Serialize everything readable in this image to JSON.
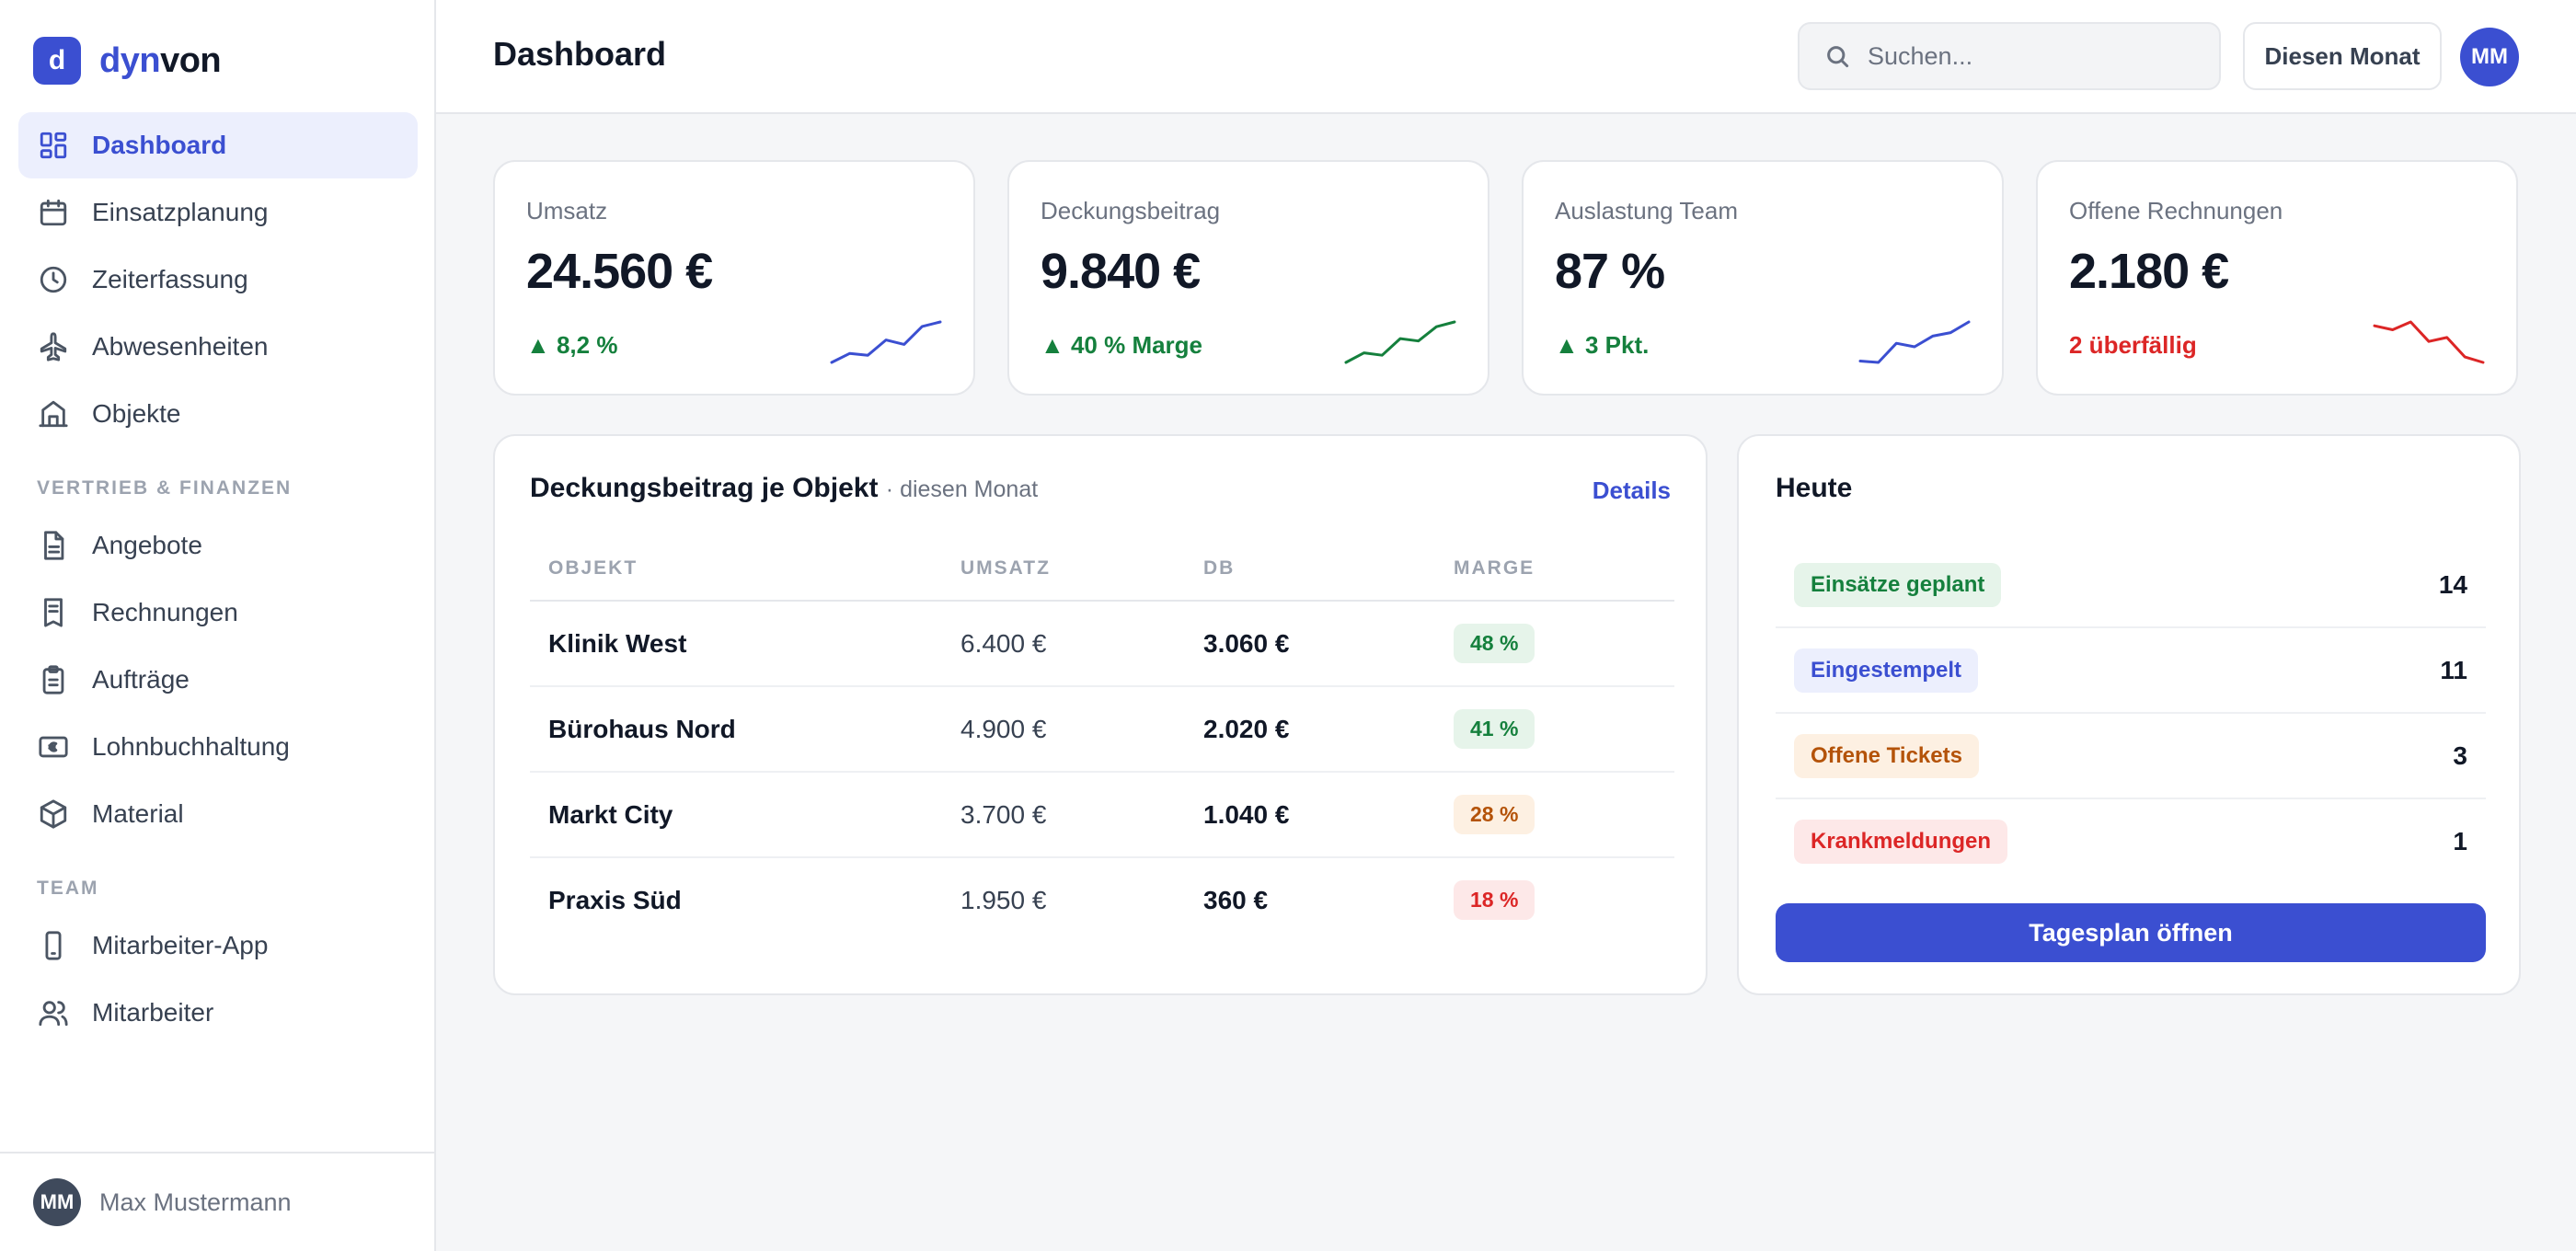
{
  "brand": {
    "mark": "d",
    "name_part1": "dyn",
    "name_part2": "von",
    "accent": "#3b4fd1"
  },
  "sidebar": {
    "main_items": [
      {
        "label": "Dashboard",
        "icon": "dashboard-grid-icon",
        "active": true
      },
      {
        "label": "Einsatzplanung",
        "icon": "calendar-icon"
      },
      {
        "label": "Zeiterfassung",
        "icon": "clock-icon"
      },
      {
        "label": "Abwesenheiten",
        "icon": "airplane-icon"
      },
      {
        "label": "Objekte",
        "icon": "building-icon"
      }
    ],
    "section_finance": "VERTRIEB & FINANZEN",
    "finance_items": [
      {
        "label": "Angebote",
        "icon": "document-icon"
      },
      {
        "label": "Rechnungen",
        "icon": "receipt-icon"
      },
      {
        "label": "Aufträge",
        "icon": "clipboard-icon"
      },
      {
        "label": "Lohnbuchhaltung",
        "icon": "euro-cash-icon"
      },
      {
        "label": "Material",
        "icon": "box-icon"
      }
    ],
    "section_team": "TEAM",
    "team_items": [
      {
        "label": "Mitarbeiter-App",
        "icon": "phone-icon"
      },
      {
        "label": "Mitarbeiter",
        "icon": "users-icon"
      }
    ],
    "user": {
      "initials": "MM",
      "name": "Max Mustermann"
    }
  },
  "header": {
    "title": "Dashboard",
    "search_placeholder": "Suchen...",
    "period_label": "Diesen Monat",
    "avatar_initials": "MM"
  },
  "kpis": [
    {
      "label": "Umsatz",
      "value": "24.560 €",
      "delta": "▲ 8,2 %",
      "status": "positive",
      "spark_color": "#3b4fd1",
      "spark": [
        2,
        4,
        3.6,
        7,
        6,
        10,
        11
      ]
    },
    {
      "label": "Deckungsbeitrag",
      "value": "9.840 €",
      "delta": "▲ 40 % Marge",
      "status": "positive",
      "spark_color": "#15803d",
      "spark": [
        2,
        4,
        3.5,
        7,
        6.5,
        9.5,
        10.5
      ]
    },
    {
      "label": "Auslastung Team",
      "value": "87 %",
      "delta": "▲ 3 Pkt.",
      "status": "positive",
      "spark_color": "#3b4fd1",
      "spark": [
        3,
        2.8,
        5.5,
        5,
        6.5,
        7,
        8.5
      ]
    },
    {
      "label": "Offene Rechnungen",
      "value": "2.180 €",
      "delta": "2 überfällig",
      "status": "negative",
      "spark_color": "#dc2626",
      "spark": [
        9,
        8.5,
        9.5,
        7,
        7.5,
        5,
        4.3
      ]
    }
  ],
  "table": {
    "title": "Deckungsbeitrag je Objekt",
    "subtitle": "· diesen Monat",
    "link": "Details",
    "columns": [
      "OBJEKT",
      "UMSATZ",
      "DB",
      "MARGE"
    ],
    "rows": [
      {
        "objekt": "Klinik West",
        "umsatz": "6.400 €",
        "db": "3.060 €",
        "marge": "48 %",
        "tone": "g"
      },
      {
        "objekt": "Bürohaus Nord",
        "umsatz": "4.900 €",
        "db": "2.020 €",
        "marge": "41 %",
        "tone": "g"
      },
      {
        "objekt": "Markt City",
        "umsatz": "3.700 €",
        "db": "1.040 €",
        "marge": "28 %",
        "tone": "o"
      },
      {
        "objekt": "Praxis Süd",
        "umsatz": "1.950 €",
        "db": "360 €",
        "marge": "18 %",
        "tone": "r"
      }
    ]
  },
  "today": {
    "title": "Heute",
    "items": [
      {
        "label": "Einsätze geplant",
        "count": "14",
        "tone": "g"
      },
      {
        "label": "Eingestempelt",
        "count": "11",
        "tone": "b"
      },
      {
        "label": "Offene Tickets",
        "count": "3",
        "tone": "o"
      },
      {
        "label": "Krankmeldungen",
        "count": "1",
        "tone": "r"
      }
    ],
    "button": "Tagesplan öffnen"
  }
}
